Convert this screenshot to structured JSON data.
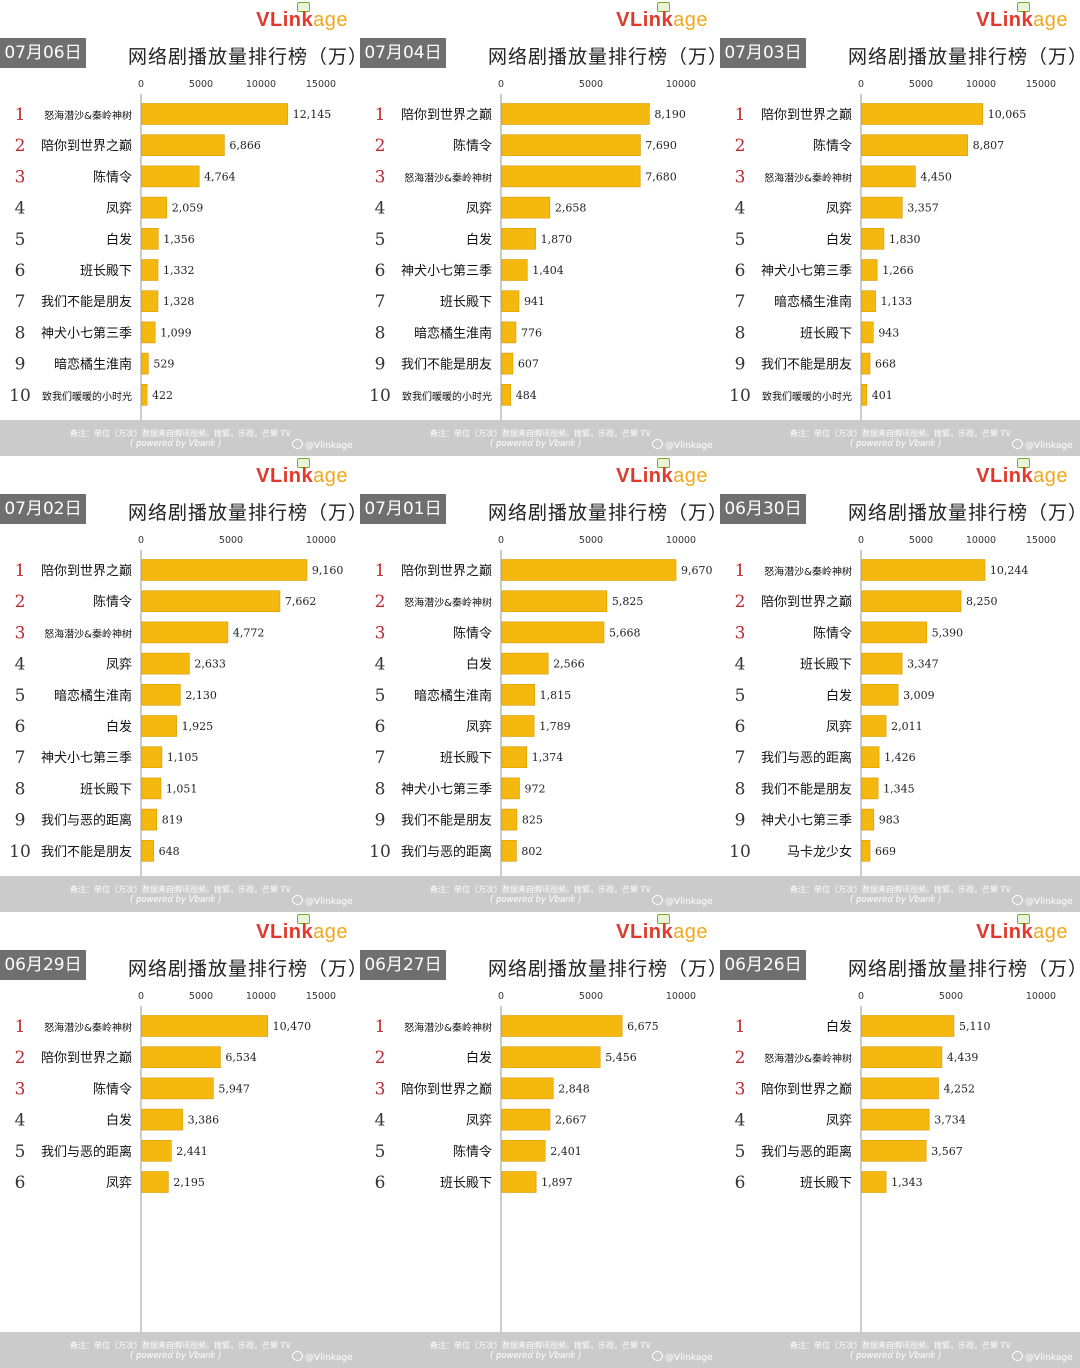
{
  "brand": {
    "logo_v": "V",
    "logo_link": "Link",
    "logo_age": "age",
    "tv_icon": "tv-icon",
    "bar_color": "#f5b80f",
    "rank_color_top": "#c0282d",
    "rank_color_rest": "#333333"
  },
  "footer": {
    "note": "备注：单位（万次）数据来自腾讯视频，搜狐，乐视，芒果 TV",
    "powered": "( powered by Vbank )",
    "weibo": "@Vlinkage"
  },
  "chart_data": [
    {
      "type": "bar",
      "orientation": "horizontal",
      "date": "07月06日",
      "title": "网络剧播放量排行榜（万）",
      "xlim": [
        0,
        15000
      ],
      "ticks": [
        0,
        5000,
        10000,
        15000
      ],
      "ranks": [
        1,
        2,
        3,
        4,
        5,
        6,
        7,
        8,
        9,
        10
      ],
      "categories": [
        "怒海潜沙&秦岭神树",
        "陪你到世界之巅",
        "陈情令",
        "凤弈",
        "白发",
        "班长殿下",
        "我们不能是朋友",
        "神犬小七第三季",
        "暗恋橘生淮南",
        "致我们暖暖的小时光"
      ],
      "values": [
        12145,
        6866,
        4764,
        2059,
        1356,
        1332,
        1328,
        1099,
        529,
        422
      ],
      "labels": [
        "12,145",
        "6,866",
        "4,764",
        "2,059",
        "1,356",
        "1,332",
        "1,328",
        "1,099",
        "529",
        "422"
      ]
    },
    {
      "type": "bar",
      "orientation": "horizontal",
      "date": "07月04日",
      "title": "网络剧播放量排行榜（万）",
      "xlim": [
        0,
        10000
      ],
      "ticks": [
        0,
        5000,
        10000
      ],
      "ranks": [
        1,
        2,
        3,
        4,
        5,
        6,
        7,
        8,
        9,
        10
      ],
      "categories": [
        "陪你到世界之巅",
        "陈情令",
        "怒海潜沙&秦岭神树",
        "凤弈",
        "白发",
        "神犬小七第三季",
        "班长殿下",
        "暗恋橘生淮南",
        "我们不能是朋友",
        "致我们暖暖的小时光"
      ],
      "values": [
        8190,
        7690,
        7680,
        2658,
        1870,
        1404,
        941,
        776,
        607,
        484
      ],
      "labels": [
        "8,190",
        "7,690",
        "7,680",
        "2,658",
        "1,870",
        "1,404",
        "941",
        "776",
        "607",
        "484"
      ]
    },
    {
      "type": "bar",
      "orientation": "horizontal",
      "date": "07月03日",
      "title": "网络剧播放量排行榜（万）",
      "xlim": [
        0,
        15000
      ],
      "ticks": [
        0,
        5000,
        10000,
        15000
      ],
      "ranks": [
        1,
        2,
        3,
        4,
        5,
        6,
        7,
        8,
        9,
        10
      ],
      "categories": [
        "陪你到世界之巅",
        "陈情令",
        "怒海潜沙&秦岭神树",
        "凤弈",
        "白发",
        "神犬小七第三季",
        "暗恋橘生淮南",
        "班长殿下",
        "我们不能是朋友",
        "致我们暖暖的小时光"
      ],
      "values": [
        10065,
        8807,
        4450,
        3357,
        1830,
        1266,
        1133,
        943,
        668,
        401
      ],
      "labels": [
        "10,065",
        "8,807",
        "4,450",
        "3,357",
        "1,830",
        "1,266",
        "1,133",
        "943",
        "668",
        "401"
      ]
    },
    {
      "type": "bar",
      "orientation": "horizontal",
      "date": "07月02日",
      "title": "网络剧播放量排行榜（万）",
      "xlim": [
        0,
        10000
      ],
      "ticks": [
        0,
        5000,
        10000
      ],
      "ranks": [
        1,
        2,
        3,
        4,
        5,
        6,
        7,
        8,
        9,
        10
      ],
      "categories": [
        "陪你到世界之巅",
        "陈情令",
        "怒海潜沙&秦岭神树",
        "凤弈",
        "暗恋橘生淮南",
        "白发",
        "神犬小七第三季",
        "班长殿下",
        "我们与恶的距离",
        "我们不能是朋友"
      ],
      "values": [
        9160,
        7662,
        4772,
        2633,
        2130,
        1925,
        1105,
        1051,
        819,
        648
      ],
      "labels": [
        "9,160",
        "7,662",
        "4,772",
        "2,633",
        "2,130",
        "1,925",
        "1,105",
        "1,051",
        "819",
        "648"
      ]
    },
    {
      "type": "bar",
      "orientation": "horizontal",
      "date": "07月01日",
      "title": "网络剧播放量排行榜（万）",
      "xlim": [
        0,
        10000
      ],
      "ticks": [
        0,
        5000,
        10000
      ],
      "ranks": [
        1,
        2,
        3,
        4,
        5,
        6,
        7,
        8,
        9,
        10
      ],
      "categories": [
        "陪你到世界之巅",
        "怒海潜沙&秦岭神树",
        "陈情令",
        "白发",
        "暗恋橘生淮南",
        "凤弈",
        "班长殿下",
        "神犬小七第三季",
        "我们不能是朋友",
        "我们与恶的距离"
      ],
      "values": [
        9670,
        5825,
        5668,
        2566,
        1815,
        1789,
        1374,
        972,
        825,
        802
      ],
      "labels": [
        "9,670",
        "5,825",
        "5,668",
        "2,566",
        "1,815",
        "1,789",
        "1,374",
        "972",
        "825",
        "802"
      ]
    },
    {
      "type": "bar",
      "orientation": "horizontal",
      "date": "06月30日",
      "title": "网络剧播放量排行榜（万）",
      "xlim": [
        0,
        15000
      ],
      "ticks": [
        0,
        5000,
        10000,
        15000
      ],
      "ranks": [
        1,
        2,
        3,
        4,
        5,
        6,
        7,
        8,
        9,
        10
      ],
      "categories": [
        "怒海潜沙&秦岭神树",
        "陪你到世界之巅",
        "陈情令",
        "班长殿下",
        "白发",
        "凤弈",
        "我们与恶的距离",
        "我们不能是朋友",
        "神犬小七第三季",
        "马卡龙少女"
      ],
      "values": [
        10244,
        8250,
        5390,
        3347,
        3009,
        2011,
        1426,
        1345,
        983,
        669
      ],
      "labels": [
        "10,244",
        "8,250",
        "5,390",
        "3,347",
        "3,009",
        "2,011",
        "1,426",
        "1,345",
        "983",
        "669"
      ]
    },
    {
      "type": "bar",
      "orientation": "horizontal",
      "date": "06月29日",
      "title": "网络剧播放量排行榜（万）",
      "xlim": [
        0,
        15000
      ],
      "ticks": [
        0,
        5000,
        10000,
        15000
      ],
      "ranks": [
        1,
        2,
        3,
        4,
        5,
        6
      ],
      "categories": [
        "怒海潜沙&秦岭神树",
        "陪你到世界之巅",
        "陈情令",
        "白发",
        "我们与恶的距离",
        "凤弈"
      ],
      "values": [
        10470,
        6534,
        5947,
        3386,
        2441,
        2195
      ],
      "labels": [
        "10,470",
        "6,534",
        "5,947",
        "3,386",
        "2,441",
        "2,195"
      ]
    },
    {
      "type": "bar",
      "orientation": "horizontal",
      "date": "06月27日",
      "title": "网络剧播放量排行榜（万）",
      "xlim": [
        0,
        10000
      ],
      "ticks": [
        0,
        5000,
        10000
      ],
      "ranks": [
        1,
        2,
        3,
        4,
        5,
        6
      ],
      "categories": [
        "怒海潜沙&秦岭神树",
        "白发",
        "陪你到世界之巅",
        "凤弈",
        "陈情令",
        "班长殿下"
      ],
      "values": [
        6675,
        5456,
        2848,
        2667,
        2401,
        1897
      ],
      "labels": [
        "6,675",
        "5,456",
        "2,848",
        "2,667",
        "2,401",
        "1,897"
      ]
    },
    {
      "type": "bar",
      "orientation": "horizontal",
      "date": "06月26日",
      "title": "网络剧播放量排行榜（万）",
      "xlim": [
        0,
        10000
      ],
      "ticks": [
        0,
        5000,
        10000
      ],
      "ranks": [
        1,
        2,
        3,
        4,
        5,
        6
      ],
      "categories": [
        "白发",
        "怒海潜沙&秦岭神树",
        "陪你到世界之巅",
        "凤弈",
        "我们与恶的距离",
        "班长殿下"
      ],
      "values": [
        5110,
        4439,
        4252,
        3734,
        3567,
        1343
      ],
      "labels": [
        "5,110",
        "4,439",
        "4,252",
        "3,734",
        "3,567",
        "1,343"
      ]
    }
  ]
}
